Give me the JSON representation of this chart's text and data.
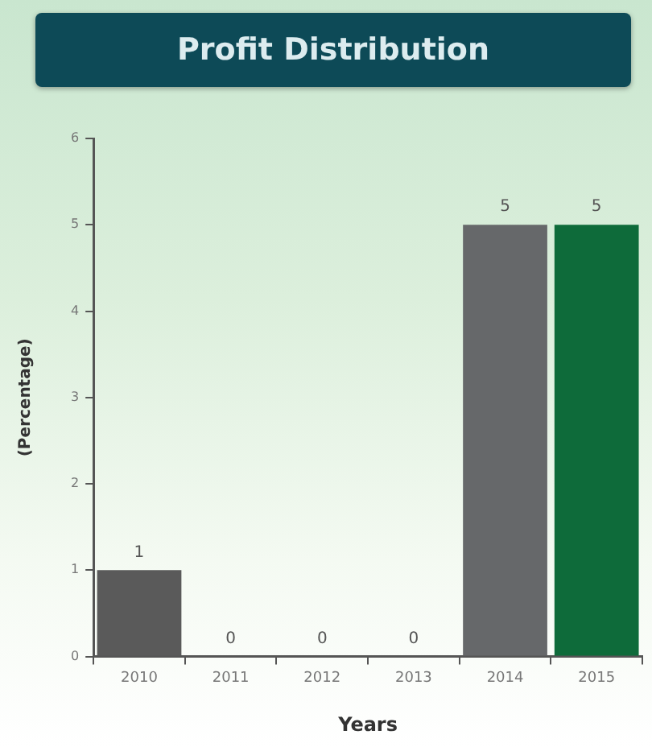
{
  "chart_data": {
    "type": "bar",
    "title": "Profit Distribution",
    "xlabel": "Years",
    "ylabel": "(Percentage)",
    "categories": [
      "2010",
      "2011",
      "2012",
      "2013",
      "2014",
      "2015"
    ],
    "values": [
      1,
      0,
      0,
      0,
      5,
      5
    ],
    "colors": [
      "#5a5a5a",
      "#5a5a5a",
      "#5a5a5a",
      "#5a5a5a",
      "#66686a",
      "#0e6b3a"
    ],
    "ylim": [
      0,
      6
    ],
    "yticks": [
      0,
      1,
      2,
      3,
      4,
      5,
      6
    ],
    "data_labels": true
  }
}
